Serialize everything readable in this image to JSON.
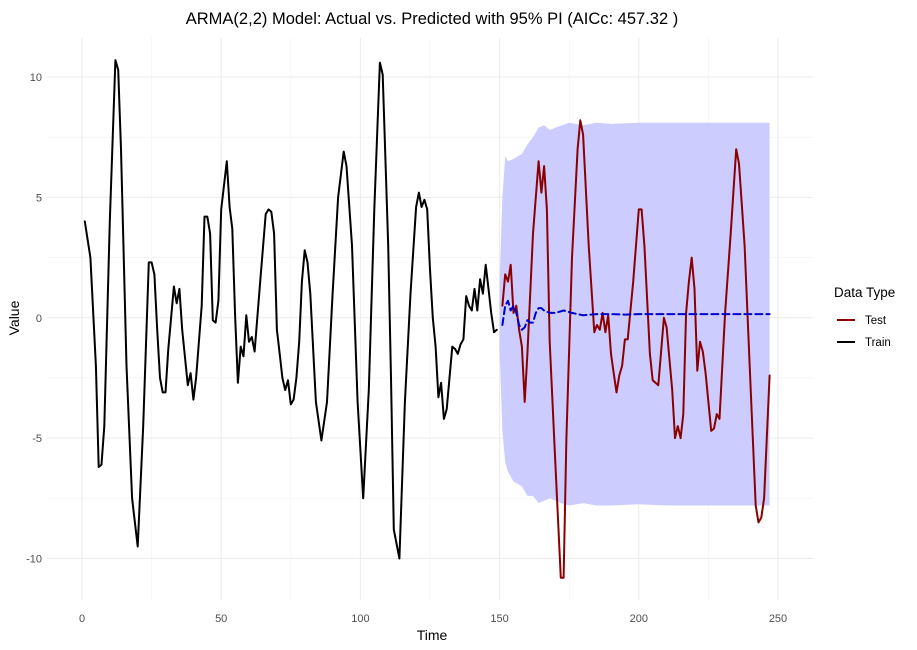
{
  "chart_data": {
    "type": "line",
    "title": "ARMA(2,2) Model: Actual vs. Predicted with 95% PI (AICc: 457.32 )",
    "xlabel": "Time",
    "ylabel": "Value",
    "xlim": [
      0,
      250
    ],
    "ylim": [
      -12,
      12
    ],
    "x_ticks": [
      0,
      50,
      100,
      150,
      200,
      250
    ],
    "y_ticks": [
      -10,
      -5,
      0,
      5,
      10
    ],
    "grid": true,
    "legend": {
      "title": "Data Type",
      "position": "right",
      "entries": [
        {
          "label": "Test",
          "color": "#8b0000"
        },
        {
          "label": "Train",
          "color": "#000000"
        }
      ]
    },
    "series": [
      {
        "name": "Train",
        "color": "#000000",
        "points": [
          [
            1,
            4.0
          ],
          [
            3,
            2.5
          ],
          [
            5,
            -2.0
          ],
          [
            6,
            -6.2
          ],
          [
            7,
            -6.1
          ],
          [
            8,
            -4.5
          ],
          [
            10,
            4.0
          ],
          [
            12,
            10.7
          ],
          [
            13,
            10.3
          ],
          [
            14,
            7.0
          ],
          [
            16,
            -2.0
          ],
          [
            18,
            -7.5
          ],
          [
            20,
            -9.5
          ],
          [
            22,
            -4.5
          ],
          [
            24,
            2.3
          ],
          [
            25,
            2.3
          ],
          [
            26,
            1.8
          ],
          [
            27,
            -0.5
          ],
          [
            28,
            -2.5
          ],
          [
            29,
            -3.1
          ],
          [
            30,
            -3.1
          ],
          [
            31,
            -1.3
          ],
          [
            33,
            1.3
          ],
          [
            34,
            0.6
          ],
          [
            35,
            1.2
          ],
          [
            36,
            -0.5
          ],
          [
            38,
            -2.8
          ],
          [
            39,
            -2.3
          ],
          [
            40,
            -3.4
          ],
          [
            41,
            -2.5
          ],
          [
            43,
            0.5
          ],
          [
            44,
            4.2
          ],
          [
            45,
            4.2
          ],
          [
            46,
            3.5
          ],
          [
            47,
            -0.1
          ],
          [
            48,
            -0.2
          ],
          [
            49,
            0.7
          ],
          [
            50,
            4.5
          ],
          [
            52,
            6.5
          ],
          [
            53,
            4.6
          ],
          [
            54,
            3.7
          ],
          [
            55,
            0.1
          ],
          [
            56,
            -2.7
          ],
          [
            57,
            -1.2
          ],
          [
            58,
            -1.6
          ],
          [
            59,
            0.1
          ],
          [
            60,
            -1.0
          ],
          [
            61,
            -0.8
          ],
          [
            62,
            -1.4
          ],
          [
            64,
            1.5
          ],
          [
            66,
            4.3
          ],
          [
            67,
            4.5
          ],
          [
            68,
            4.4
          ],
          [
            69,
            3.5
          ],
          [
            70,
            -0.5
          ],
          [
            71,
            -1.5
          ],
          [
            72,
            -2.5
          ],
          [
            73,
            -3.0
          ],
          [
            74,
            -2.6
          ],
          [
            75,
            -3.6
          ],
          [
            76,
            -3.4
          ],
          [
            77,
            -2.5
          ],
          [
            78,
            -1.0
          ],
          [
            79,
            1.5
          ],
          [
            80,
            2.8
          ],
          [
            81,
            2.3
          ],
          [
            82,
            1.0
          ],
          [
            84,
            -3.5
          ],
          [
            86,
            -5.1
          ],
          [
            88,
            -3.5
          ],
          [
            90,
            1.0
          ],
          [
            92,
            5.0
          ],
          [
            94,
            6.9
          ],
          [
            95,
            6.3
          ],
          [
            97,
            3.0
          ],
          [
            99,
            -3.5
          ],
          [
            101,
            -7.5
          ],
          [
            103,
            -3.0
          ],
          [
            105,
            4.5
          ],
          [
            107,
            10.6
          ],
          [
            108,
            10.1
          ],
          [
            110,
            3.0
          ],
          [
            111,
            -2.5
          ],
          [
            112,
            -8.8
          ],
          [
            114,
            -10.0
          ],
          [
            116,
            -3.5
          ],
          [
            118,
            1.0
          ],
          [
            120,
            4.6
          ],
          [
            121,
            5.2
          ],
          [
            122,
            4.6
          ],
          [
            123,
            4.9
          ],
          [
            124,
            4.5
          ],
          [
            125,
            2.0
          ],
          [
            126,
            0.0
          ],
          [
            127,
            -1.2
          ],
          [
            128,
            -3.3
          ],
          [
            129,
            -2.7
          ],
          [
            130,
            -4.2
          ],
          [
            131,
            -3.8
          ],
          [
            132,
            -2.5
          ],
          [
            133,
            -1.2
          ],
          [
            134,
            -1.3
          ],
          [
            135,
            -1.5
          ],
          [
            136,
            -1.1
          ],
          [
            137,
            -0.9
          ],
          [
            138,
            0.9
          ],
          [
            139,
            0.5
          ],
          [
            140,
            0.3
          ],
          [
            141,
            1.2
          ],
          [
            142,
            0.3
          ],
          [
            143,
            1.6
          ],
          [
            144,
            1.0
          ],
          [
            145,
            2.2
          ],
          [
            146,
            1.2
          ],
          [
            147,
            0.2
          ],
          [
            148,
            -0.6
          ],
          [
            149,
            -0.5
          ]
        ]
      },
      {
        "name": "Test",
        "color": "#8b0000",
        "points": [
          [
            151,
            0.5
          ],
          [
            152,
            1.8
          ],
          [
            153,
            1.5
          ],
          [
            154,
            2.2
          ],
          [
            155,
            0.2
          ],
          [
            156,
            0.5
          ],
          [
            157,
            -0.5
          ],
          [
            158,
            -1.2
          ],
          [
            159,
            -3.5
          ],
          [
            160,
            -1.5
          ],
          [
            162,
            3.5
          ],
          [
            164,
            6.5
          ],
          [
            165,
            5.2
          ],
          [
            166,
            6.3
          ],
          [
            167,
            4.5
          ],
          [
            168,
            -1.0
          ],
          [
            170,
            -6.0
          ],
          [
            172,
            -10.8
          ],
          [
            173,
            -10.8
          ],
          [
            174,
            -5.0
          ],
          [
            176,
            2.5
          ],
          [
            178,
            7.0
          ],
          [
            179,
            8.2
          ],
          [
            180,
            7.6
          ],
          [
            182,
            3.0
          ],
          [
            184,
            -0.6
          ],
          [
            185,
            -0.3
          ],
          [
            186,
            -0.5
          ],
          [
            187,
            0.2
          ],
          [
            188,
            -0.6
          ],
          [
            189,
            0.1
          ],
          [
            190,
            -1.5
          ],
          [
            191,
            -2.3
          ],
          [
            192,
            -3.1
          ],
          [
            193,
            -2.4
          ],
          [
            194,
            -2.0
          ],
          [
            195,
            -0.9
          ],
          [
            196,
            -0.9
          ],
          [
            198,
            1.5
          ],
          [
            200,
            4.5
          ],
          [
            201,
            4.5
          ],
          [
            202,
            3.0
          ],
          [
            204,
            -1.5
          ],
          [
            205,
            -2.6
          ],
          [
            206,
            -2.7
          ],
          [
            207,
            -2.8
          ],
          [
            209,
            0.0
          ],
          [
            210,
            -0.4
          ],
          [
            211,
            -1.7
          ],
          [
            212,
            -3.0
          ],
          [
            213,
            -5.0
          ],
          [
            214,
            -4.5
          ],
          [
            215,
            -5.0
          ],
          [
            216,
            -4.0
          ],
          [
            217,
            0.2
          ],
          [
            218,
            1.5
          ],
          [
            219,
            2.5
          ],
          [
            220,
            1.2
          ],
          [
            221,
            -2.2
          ],
          [
            222,
            -1.0
          ],
          [
            223,
            -1.4
          ],
          [
            224,
            -2.3
          ],
          [
            226,
            -4.7
          ],
          [
            227,
            -4.6
          ],
          [
            228,
            -4.0
          ],
          [
            229,
            -4.2
          ],
          [
            231,
            0.2
          ],
          [
            233,
            3.5
          ],
          [
            235,
            7.0
          ],
          [
            236,
            6.4
          ],
          [
            238,
            3.0
          ],
          [
            240,
            -2.5
          ],
          [
            242,
            -7.8
          ],
          [
            243,
            -8.5
          ],
          [
            244,
            -8.3
          ],
          [
            245,
            -7.5
          ],
          [
            247,
            -2.4
          ]
        ]
      },
      {
        "name": "Predicted",
        "color": "#0000cd",
        "dashed": true,
        "points": [
          [
            151,
            -0.3
          ],
          [
            152,
            0.5
          ],
          [
            153,
            0.7
          ],
          [
            154,
            0.3
          ],
          [
            155,
            0.5
          ],
          [
            156,
            0.2
          ],
          [
            157,
            -0.3
          ],
          [
            158,
            -0.5
          ],
          [
            159,
            -0.4
          ],
          [
            160,
            -0.1
          ],
          [
            161,
            -0.2
          ],
          [
            162,
            -0.2
          ],
          [
            163,
            0.2
          ],
          [
            164,
            0.4
          ],
          [
            165,
            0.4
          ],
          [
            166,
            0.3
          ],
          [
            168,
            0.2
          ],
          [
            170,
            0.2
          ],
          [
            173,
            0.3
          ],
          [
            176,
            0.2
          ],
          [
            180,
            0.1
          ],
          [
            185,
            0.15
          ],
          [
            190,
            0.15
          ],
          [
            195,
            0.13
          ],
          [
            200,
            0.15
          ],
          [
            210,
            0.15
          ],
          [
            220,
            0.15
          ],
          [
            230,
            0.15
          ],
          [
            247,
            0.15
          ]
        ]
      }
    ],
    "interval": {
      "label": "95% PI",
      "color": "#ccccff",
      "upper": [
        [
          150,
          1.5
        ],
        [
          151,
          5.0
        ],
        [
          152,
          6.7
        ],
        [
          153,
          6.5
        ],
        [
          155,
          6.6
        ],
        [
          158,
          6.8
        ],
        [
          160,
          7.2
        ],
        [
          162,
          7.5
        ],
        [
          164,
          7.9
        ],
        [
          166,
          8.0
        ],
        [
          168,
          7.8
        ],
        [
          170,
          7.9
        ],
        [
          175,
          8.1
        ],
        [
          180,
          8.0
        ],
        [
          185,
          8.1
        ],
        [
          190,
          8.05
        ],
        [
          200,
          8.1
        ],
        [
          210,
          8.1
        ],
        [
          220,
          8.1
        ],
        [
          230,
          8.1
        ],
        [
          247,
          8.1
        ]
      ],
      "lower": [
        [
          150,
          -1.3
        ],
        [
          151,
          -4.7
        ],
        [
          152,
          -6.0
        ],
        [
          153,
          -6.4
        ],
        [
          155,
          -6.8
        ],
        [
          158,
          -7.0
        ],
        [
          160,
          -7.4
        ],
        [
          162,
          -7.4
        ],
        [
          164,
          -7.7
        ],
        [
          166,
          -7.6
        ],
        [
          168,
          -7.5
        ],
        [
          170,
          -7.6
        ],
        [
          172,
          -7.7
        ],
        [
          175,
          -7.8
        ],
        [
          180,
          -7.7
        ],
        [
          185,
          -7.8
        ],
        [
          190,
          -7.8
        ],
        [
          200,
          -7.75
        ],
        [
          210,
          -7.8
        ],
        [
          220,
          -7.8
        ],
        [
          230,
          -7.8
        ],
        [
          247,
          -7.8
        ]
      ]
    }
  }
}
